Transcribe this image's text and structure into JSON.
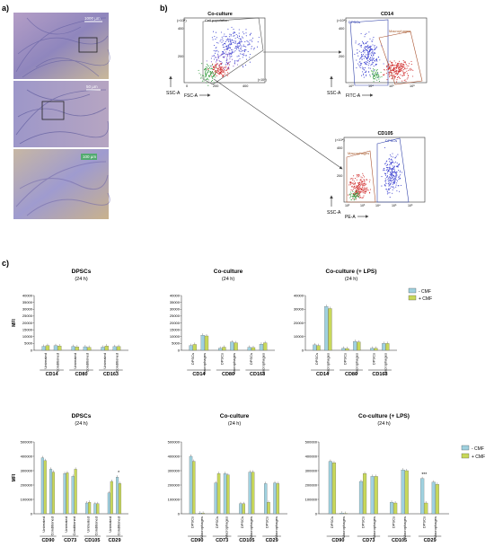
{
  "panels": {
    "a": "a)",
    "b": "b)",
    "c": "c)"
  },
  "micro": {
    "scales": [
      "1000 µm",
      "50 µm",
      "100 µm"
    ]
  },
  "flow": {
    "plots": [
      {
        "title": "Co-culture",
        "gate": "Cell population",
        "xlabel": "FSC-A",
        "ylabel": "SSC-A",
        "yexp": "(×10⁴)",
        "xexp": "(×10⁴)",
        "yticks": [
          "400",
          "200"
        ],
        "xticks": [
          "0",
          "200",
          "400"
        ]
      },
      {
        "title": "CD14",
        "gate1": "DPSCs",
        "gate2": "Macrophages",
        "xlabel": "FITC-A",
        "ylabel": "SSC-A",
        "yexp": "(×10⁴)",
        "yticks": [
          "400",
          "200"
        ],
        "xticks": [
          "10³",
          "10⁴",
          "10⁵",
          "10⁶"
        ]
      },
      {
        "title": "CD105",
        "gate1": "DPSCs",
        "gate2": "Macrophages",
        "xlabel": "PE-A",
        "ylabel": "SSC-A",
        "yexp": "(×10⁴)",
        "yticks": [
          "400",
          "200"
        ],
        "xticks": [
          "10²",
          "10³",
          "10⁴",
          "10⁵",
          "10⁶"
        ]
      }
    ]
  },
  "legend": {
    "minus": "- CMF",
    "plus": "+ CMF"
  },
  "colors": {
    "minus": "#9fd1df",
    "plus": "#c8d85a",
    "tint": "#f6e8b6"
  },
  "mfi_label": "MFI",
  "chart_data": [
    {
      "type": "bar",
      "title": "DPSCs",
      "subtitle": "(24 h)",
      "ylabel": "MFI",
      "ylim": [
        0,
        40000
      ],
      "yticks": [
        0,
        5000,
        10000,
        15000,
        20000,
        25000,
        30000,
        35000,
        40000
      ],
      "marker_groups": [
        "CD14",
        "CD80",
        "CD163"
      ],
      "categories": [
        "Untreated",
        "Conditioned",
        "Untreated",
        "Conditioned",
        "Untreated",
        "Conditioned"
      ],
      "series": [
        {
          "name": "- CMF",
          "values": [
            2900,
            3400,
            2800,
            2600,
            2300,
            2700
          ]
        },
        {
          "name": "+ CMF",
          "values": [
            3500,
            3200,
            2500,
            2200,
            3200,
            2800
          ]
        }
      ],
      "significance": []
    },
    {
      "type": "bar",
      "title": "Co-culture",
      "subtitle": "(24 h)",
      "ylabel": "",
      "ylim": [
        0,
        40000
      ],
      "yticks": [
        0,
        5000,
        10000,
        15000,
        20000,
        25000,
        30000,
        35000,
        40000
      ],
      "marker_groups": [
        "CD14",
        "CD80",
        "CD163"
      ],
      "categories": [
        "DPSCs",
        "Macrophages",
        "DPSCs",
        "Macrophages",
        "DPSCs",
        "Macrophages"
      ],
      "series": [
        {
          "name": "- CMF",
          "values": [
            3500,
            11000,
            1500,
            6000,
            2200,
            4500
          ]
        },
        {
          "name": "+ CMF",
          "values": [
            4300,
            10500,
            2300,
            5500,
            2000,
            5500
          ]
        }
      ],
      "significance": []
    },
    {
      "type": "bar",
      "title": "Co-culture (+ LPS)",
      "subtitle": "(24 h)",
      "ylabel": "",
      "ylim": [
        0,
        40000
      ],
      "yticks": [
        0,
        10000,
        20000,
        30000,
        40000
      ],
      "marker_groups": [
        "CD14",
        "CD80",
        "CD163"
      ],
      "categories": [
        "DPSCs",
        "Macrophages",
        "DPSCs",
        "Macrophages",
        "DPSCs",
        "Macrophages"
      ],
      "series": [
        {
          "name": "- CMF",
          "values": [
            4000,
            32000,
            1500,
            6500,
            1500,
            5000
          ]
        },
        {
          "name": "+ CMF",
          "values": [
            3500,
            30500,
            1300,
            6000,
            1500,
            5000
          ]
        }
      ],
      "significance": []
    },
    {
      "type": "bar",
      "title": "DPSCs",
      "subtitle": "(24 h)",
      "ylabel": "MFI",
      "ylim": [
        0,
        500000
      ],
      "yticks": [
        0,
        100000,
        200000,
        300000,
        400000,
        500000
      ],
      "marker_groups": [
        "CD90",
        "CD73",
        "CD105",
        "CD29"
      ],
      "categories": [
        "Untreated",
        "Conditioned",
        "Untreated",
        "Conditioned",
        "Untreated",
        "Conditioned",
        "Untreated",
        "Conditioned"
      ],
      "series": [
        {
          "name": "- CMF",
          "values": [
            390000,
            310000,
            280000,
            260000,
            75000,
            70000,
            145000,
            255000
          ]
        },
        {
          "name": "+ CMF",
          "values": [
            370000,
            290000,
            285000,
            310000,
            80000,
            70000,
            225000,
            210000
          ]
        }
      ],
      "significance": [
        "",
        "",
        "",
        "",
        "",
        "",
        "",
        "*"
      ]
    },
    {
      "type": "bar",
      "title": "Co-culture",
      "subtitle": "(24 h)",
      "ylabel": "",
      "ylim": [
        0,
        500000
      ],
      "yticks": [
        0,
        100000,
        200000,
        300000,
        400000,
        500000
      ],
      "marker_groups": [
        "CD90",
        "CD73",
        "CD105",
        "CD29"
      ],
      "categories": [
        "DPSCs",
        "Macrophages",
        "DPSCs",
        "Macrophages",
        "DPSCs",
        "Macrophages",
        "DPSCs",
        "Macrophages"
      ],
      "series": [
        {
          "name": "- CMF",
          "values": [
            400000,
            5000,
            215000,
            280000,
            70000,
            290000,
            210000,
            215000
          ]
        },
        {
          "name": "+ CMF",
          "values": [
            365000,
            4000,
            280000,
            270000,
            70000,
            290000,
            80000,
            210000
          ]
        }
      ],
      "significance": []
    },
    {
      "type": "bar",
      "title": "Co-culture (+ LPS)",
      "subtitle": "(24 h)",
      "ylabel": "",
      "ylim": [
        0,
        500000
      ],
      "yticks": [
        0,
        100000,
        200000,
        300000,
        400000,
        500000
      ],
      "marker_groups": [
        "CD90",
        "CD73",
        "CD105",
        "CD29"
      ],
      "categories": [
        "DPSCs",
        "Macrophages",
        "DPSCs",
        "Macrophages",
        "DPSCs",
        "Macrophages",
        "DPSCs",
        "Macrophages"
      ],
      "series": [
        {
          "name": "- CMF",
          "values": [
            365000,
            5000,
            225000,
            260000,
            80000,
            305000,
            245000,
            220000
          ]
        },
        {
          "name": "+ CMF",
          "values": [
            355000,
            3000,
            280000,
            260000,
            75000,
            300000,
            75000,
            205000
          ]
        }
      ],
      "significance": [
        "",
        "",
        "",
        "",
        "",
        "",
        "***",
        ""
      ]
    }
  ]
}
